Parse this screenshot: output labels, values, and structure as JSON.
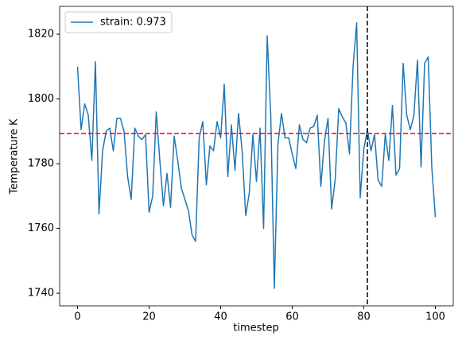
{
  "chart_data": {
    "type": "line",
    "xlabel": "timestep",
    "ylabel": "Temperature K",
    "x": [
      0,
      1,
      2,
      3,
      4,
      5,
      6,
      7,
      8,
      9,
      10,
      11,
      12,
      13,
      14,
      15,
      16,
      17,
      18,
      19,
      20,
      21,
      22,
      23,
      24,
      25,
      26,
      27,
      28,
      29,
      30,
      31,
      32,
      33,
      34,
      35,
      36,
      37,
      38,
      39,
      40,
      41,
      42,
      43,
      44,
      45,
      46,
      47,
      48,
      49,
      50,
      51,
      52,
      53,
      54,
      55,
      56,
      57,
      58,
      59,
      60,
      61,
      62,
      63,
      64,
      65,
      66,
      67,
      68,
      69,
      70,
      71,
      72,
      73,
      74,
      75,
      76,
      77,
      78,
      79,
      80,
      81,
      82,
      83,
      84,
      85,
      86,
      87,
      88,
      89,
      90,
      91,
      92,
      93,
      94,
      95,
      96,
      97,
      98,
      99,
      100
    ],
    "series": [
      {
        "name": "strain: 0.973",
        "color": "#1f77b4",
        "values": [
          1810,
          1790.5,
          1798.5,
          1795,
          1781,
          1811.5,
          1764.5,
          1784,
          1790,
          1791,
          1784,
          1794,
          1794,
          1790,
          1776,
          1769,
          1791,
          1788.5,
          1787.5,
          1789,
          1765,
          1770,
          1796,
          1781,
          1767,
          1777,
          1766.5,
          1788.5,
          1781,
          1772.5,
          1769,
          1765.5,
          1758,
          1756,
          1788,
          1793,
          1773.5,
          1785.5,
          1784,
          1793,
          1788,
          1804.5,
          1776,
          1792,
          1778,
          1795.5,
          1784,
          1764,
          1771,
          1789,
          1774.5,
          1791,
          1760,
          1819.5,
          1795,
          1741.5,
          1786,
          1795.5,
          1788,
          1788,
          1783,
          1778.5,
          1792,
          1787.5,
          1786.5,
          1791,
          1791.5,
          1795,
          1773,
          1787,
          1794,
          1766,
          1775,
          1797,
          1794.5,
          1792.5,
          1783,
          1810,
          1823.5,
          1769.5,
          1784.5,
          1790.5,
          1784,
          1789,
          1775,
          1773,
          1789,
          1781,
          1798,
          1776.5,
          1778.5,
          1811,
          1795,
          1790.5,
          1795,
          1812,
          1779,
          1811,
          1813,
          1779,
          1763.5
        ]
      }
    ],
    "hline": {
      "value": 1789.3,
      "color": "#ff0000"
    },
    "vline": {
      "value": 81,
      "color": "#000000"
    },
    "xlim": [
      -5,
      105
    ],
    "ylim": [
      1736.1,
      1828.6
    ],
    "xticks": [
      0,
      20,
      40,
      60,
      80,
      100
    ],
    "yticks": [
      1740,
      1760,
      1780,
      1800,
      1820
    ],
    "grid": false,
    "legend": "upper left"
  }
}
